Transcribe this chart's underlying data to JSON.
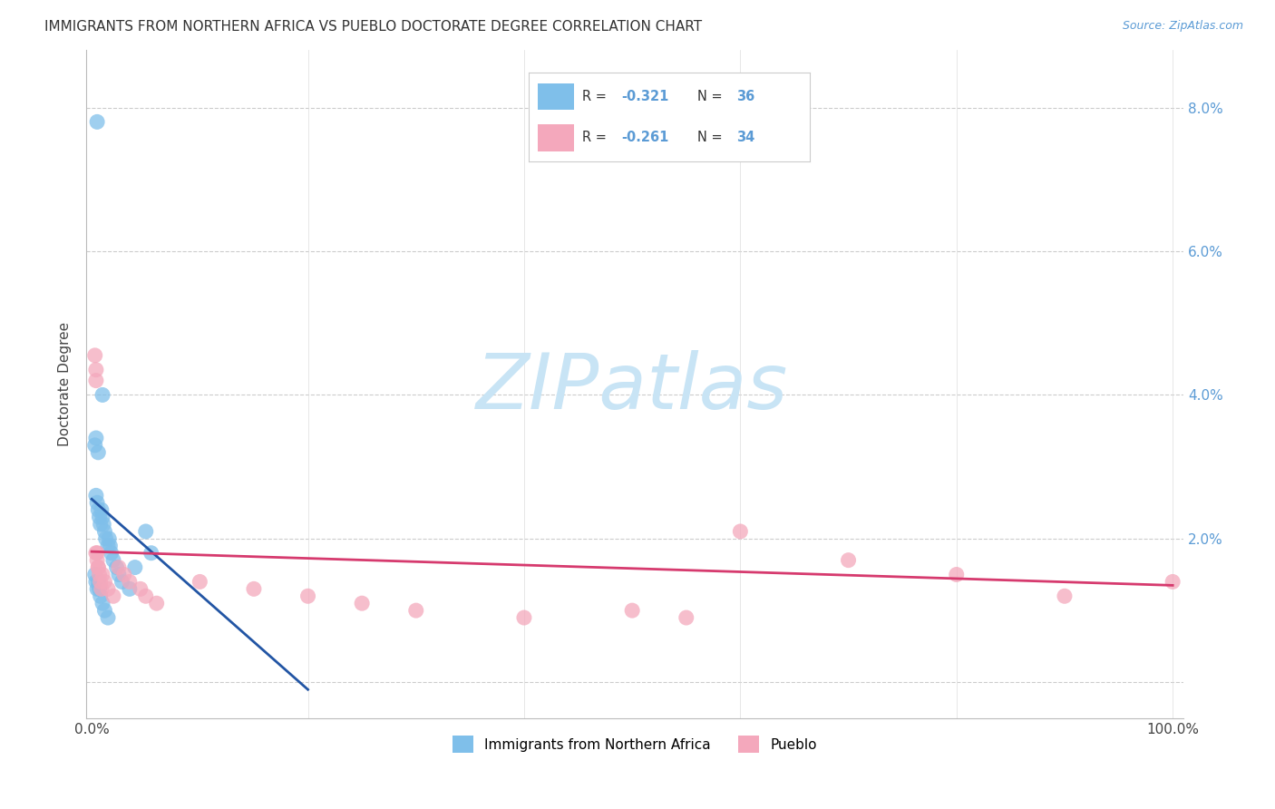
{
  "title": "IMMIGRANTS FROM NORTHERN AFRICA VS PUEBLO DOCTORATE DEGREE CORRELATION CHART",
  "source": "Source: ZipAtlas.com",
  "ylabel": "Doctorate Degree",
  "watermark": "ZIPatlas",
  "legend_blue_r": "R = -0.321",
  "legend_blue_n": "N = 36",
  "legend_pink_r": "R = -0.261",
  "legend_pink_n": "N = 34",
  "blue_color": "#7fbfea",
  "pink_color": "#f4a8bc",
  "blue_line_color": "#2255a4",
  "pink_line_color": "#d63a6e",
  "grid_color": "#cccccc",
  "background_color": "#ffffff",
  "watermark_color": "#c8e4f5",
  "blue_scatter_x": [
    0.5,
    1.0,
    0.3,
    0.4,
    0.6,
    0.4,
    0.5,
    0.6,
    0.7,
    0.8,
    0.9,
    1.0,
    1.1,
    1.2,
    1.3,
    1.5,
    1.6,
    1.7,
    1.8,
    2.0,
    2.3,
    2.5,
    2.8,
    3.5,
    4.0,
    5.0,
    5.5,
    0.3,
    0.4,
    0.5,
    0.6,
    0.7,
    0.8,
    1.0,
    1.2,
    1.5
  ],
  "blue_scatter_y": [
    7.8,
    4.0,
    3.3,
    3.4,
    3.2,
    2.6,
    2.5,
    2.4,
    2.3,
    2.2,
    2.4,
    2.3,
    2.2,
    2.1,
    2.0,
    1.9,
    2.0,
    1.9,
    1.8,
    1.7,
    1.6,
    1.5,
    1.4,
    1.3,
    1.6,
    2.1,
    1.8,
    1.5,
    1.4,
    1.3,
    1.4,
    1.3,
    1.2,
    1.1,
    1.0,
    0.9
  ],
  "pink_scatter_x": [
    0.3,
    0.4,
    0.4,
    0.5,
    0.6,
    0.7,
    0.8,
    0.9,
    1.0,
    1.2,
    1.5,
    2.0,
    2.5,
    3.0,
    3.5,
    4.5,
    5.0,
    6.0,
    10.0,
    15.0,
    20.0,
    25.0,
    30.0,
    40.0,
    50.0,
    55.0,
    60.0,
    70.0,
    80.0,
    90.0,
    100.0,
    0.4,
    0.5,
    0.6
  ],
  "pink_scatter_y": [
    4.55,
    4.35,
    4.2,
    1.8,
    1.6,
    1.5,
    1.4,
    1.3,
    1.5,
    1.4,
    1.3,
    1.2,
    1.6,
    1.5,
    1.4,
    1.3,
    1.2,
    1.1,
    1.4,
    1.3,
    1.2,
    1.1,
    1.0,
    0.9,
    1.0,
    0.9,
    2.1,
    1.7,
    1.5,
    1.2,
    1.4,
    1.8,
    1.7,
    1.6
  ],
  "blue_line_x0": 0.0,
  "blue_line_y0": 2.55,
  "blue_line_x1": 20.0,
  "blue_line_y1": -0.1,
  "pink_line_x0": 0.0,
  "pink_line_y0": 1.82,
  "pink_line_x1": 100.0,
  "pink_line_y1": 1.35,
  "xlim_min": -0.5,
  "xlim_max": 101,
  "ylim_min": -0.5,
  "ylim_max": 8.8,
  "ytick_positions": [
    0,
    2.0,
    4.0,
    6.0,
    8.0
  ],
  "xtick_positions": [
    0,
    20,
    40,
    60,
    80,
    100
  ]
}
